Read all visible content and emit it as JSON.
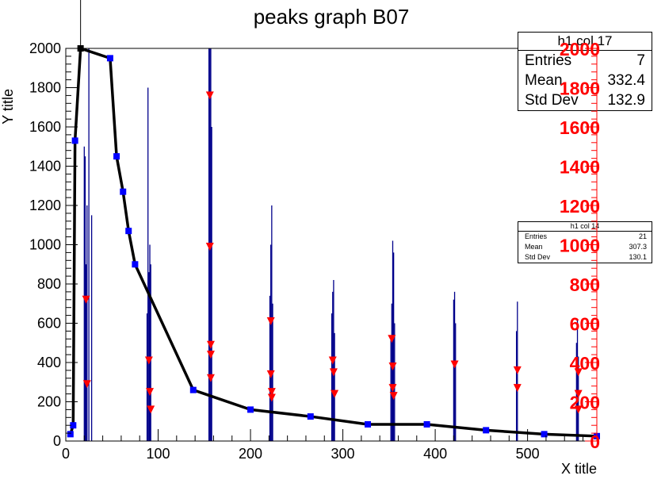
{
  "chart_data": {
    "type": "line",
    "title": "peaks graph B07",
    "xlabel": "X title",
    "ylabel": "Y title",
    "xlim": [
      0,
      575
    ],
    "ylim": [
      0,
      2000
    ],
    "x_ticks": [
      0,
      100,
      200,
      300,
      400,
      500
    ],
    "y_ticks": [
      0,
      200,
      400,
      600,
      800,
      1000,
      1200,
      1400,
      1600,
      1800,
      2000
    ],
    "right_axis_ticks": [
      0,
      200,
      400,
      600,
      800,
      1000,
      1200,
      1400,
      1600,
      1800,
      2000
    ],
    "colors": {
      "hist": "#00008b",
      "graph_line": "#000000",
      "graph_markers": "#0000ff",
      "peak_markers": "#ff0000",
      "right_axis": "#ff0000"
    },
    "graph_points": {
      "x": [
        5,
        8,
        10,
        16,
        48,
        55,
        62,
        68,
        75,
        138,
        200,
        265,
        327,
        391,
        455,
        518,
        575
      ],
      "y": [
        35,
        80,
        1530,
        2000,
        1950,
        1450,
        1270,
        1070,
        900,
        260,
        160,
        125,
        85,
        85,
        55,
        35,
        25
      ]
    },
    "histogram_peaks": [
      {
        "x": 20,
        "h": 1500
      },
      {
        "x": 21,
        "h": 1450
      },
      {
        "x": 22,
        "h": 900
      },
      {
        "x": 23,
        "h": 1200
      },
      {
        "x": 25,
        "h": 2000
      },
      {
        "x": 28,
        "h": 1150
      },
      {
        "x": 88,
        "h": 650
      },
      {
        "x": 89,
        "h": 1800
      },
      {
        "x": 90,
        "h": 860
      },
      {
        "x": 91,
        "h": 1000
      },
      {
        "x": 92,
        "h": 900
      },
      {
        "x": 155,
        "h": 2000
      },
      {
        "x": 156,
        "h": 2000
      },
      {
        "x": 157,
        "h": 2000
      },
      {
        "x": 158,
        "h": 1600
      },
      {
        "x": 221,
        "h": 740
      },
      {
        "x": 222,
        "h": 1000
      },
      {
        "x": 223,
        "h": 1200
      },
      {
        "x": 224,
        "h": 700
      },
      {
        "x": 288,
        "h": 650
      },
      {
        "x": 289,
        "h": 760
      },
      {
        "x": 290,
        "h": 820
      },
      {
        "x": 291,
        "h": 550
      },
      {
        "x": 352,
        "h": 520
      },
      {
        "x": 353,
        "h": 700
      },
      {
        "x": 354,
        "h": 1020
      },
      {
        "x": 355,
        "h": 960
      },
      {
        "x": 356,
        "h": 600
      },
      {
        "x": 420,
        "h": 720
      },
      {
        "x": 421,
        "h": 760
      },
      {
        "x": 422,
        "h": 600
      },
      {
        "x": 488,
        "h": 560
      },
      {
        "x": 489,
        "h": 710
      },
      {
        "x": 553,
        "h": 500
      },
      {
        "x": 554,
        "h": 620
      },
      {
        "x": 555,
        "h": 430
      }
    ],
    "peak_markers": [
      {
        "x": 22,
        "y": 720
      },
      {
        "x": 23,
        "y": 290
      },
      {
        "x": 90,
        "y": 410
      },
      {
        "x": 91,
        "y": 250
      },
      {
        "x": 92,
        "y": 160
      },
      {
        "x": 156,
        "y": 1760
      },
      {
        "x": 156,
        "y": 990
      },
      {
        "x": 157,
        "y": 490
      },
      {
        "x": 157,
        "y": 440
      },
      {
        "x": 157,
        "y": 320
      },
      {
        "x": 222,
        "y": 610
      },
      {
        "x": 222,
        "y": 340
      },
      {
        "x": 223,
        "y": 250
      },
      {
        "x": 223,
        "y": 220
      },
      {
        "x": 289,
        "y": 410
      },
      {
        "x": 290,
        "y": 350
      },
      {
        "x": 291,
        "y": 240
      },
      {
        "x": 353,
        "y": 520
      },
      {
        "x": 354,
        "y": 380
      },
      {
        "x": 354,
        "y": 270
      },
      {
        "x": 355,
        "y": 230
      },
      {
        "x": 421,
        "y": 390
      },
      {
        "x": 489,
        "y": 360
      },
      {
        "x": 489,
        "y": 270
      },
      {
        "x": 555,
        "y": 350
      },
      {
        "x": 555,
        "y": 240
      },
      {
        "x": 555,
        "y": 160
      }
    ]
  },
  "stats_box_1": {
    "title": "h1 col 17",
    "rows": [
      {
        "label": "Entries",
        "value": "7"
      },
      {
        "label": "Mean",
        "value": "332.4"
      },
      {
        "label": "Std Dev",
        "value": "132.9"
      }
    ]
  },
  "stats_box_2": {
    "title": "h1 col 14",
    "rows": [
      {
        "label": "Entries",
        "value": "21"
      },
      {
        "label": "Mean",
        "value": "307.3"
      },
      {
        "label": "Std Dev",
        "value": "130.1"
      }
    ]
  }
}
